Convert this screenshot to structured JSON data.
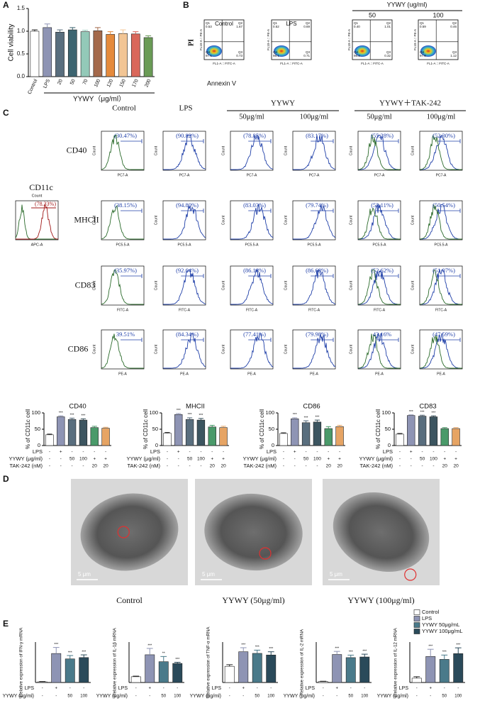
{
  "panel_labels": [
    "A",
    "B",
    "C",
    "D",
    "E"
  ],
  "chart_data": [
    {
      "type": "bar",
      "y_label": "Cell viability",
      "x_label": "YYWY（μg/ml）",
      "categories": [
        "Control",
        "LPS",
        "20",
        "50",
        "70",
        "100",
        "120",
        "150",
        "170",
        "200"
      ],
      "values": [
        1.0,
        1.08,
        0.98,
        1.03,
        0.99,
        1.01,
        0.93,
        0.95,
        0.94,
        0.86
      ],
      "errors": [
        0.03,
        0.08,
        0.05,
        0.05,
        0.03,
        0.07,
        0.06,
        0.08,
        0.05,
        0.04
      ],
      "colors": [
        "#ffffff",
        "#8e94b4",
        "#596e7e",
        "#3c6470",
        "#93c9b8",
        "#a4694b",
        "#e58a3c",
        "#f2c594",
        "#d9675a",
        "#6a9b56"
      ],
      "ylim": [
        0,
        1.5
      ],
      "yticks": [
        {
          "value": 0,
          "label": "0.0"
        },
        0.5,
        {
          "value": 1,
          "label": "1.0"
        },
        1.5
      ]
    },
    {
      "type": "bar",
      "title": "CD40",
      "y_label": "% of CD11c cell",
      "categories": [
        null,
        null,
        null,
        null,
        null,
        null
      ],
      "values": [
        33,
        88,
        80,
        78,
        55,
        53
      ],
      "errors": [
        2,
        3,
        4,
        4,
        4,
        3
      ],
      "colors": [
        "#ffffff",
        "#8e94b4",
        "#596e7e",
        "#3c5560",
        "#4a9a6a",
        "#e6a464"
      ],
      "significance": [
        null,
        "***",
        "***",
        "***",
        null,
        null
      ],
      "ylim": [
        0,
        100
      ],
      "yticks": [
        0,
        50,
        100
      ],
      "conditions": [
        {
          "name": "LPS",
          "values": [
            "-",
            "+",
            "-",
            "-",
            "-",
            "-"
          ]
        },
        {
          "name": "YYWY (μg/ml)",
          "values": [
            "-",
            "-",
            "50",
            "100",
            "+",
            "+"
          ]
        },
        {
          "name": "TAK-242 (nM)",
          "values": [
            "-",
            "-",
            "-",
            "-",
            "20",
            "20"
          ]
        }
      ]
    },
    {
      "type": "bar",
      "title": "MHCII",
      "y_label": "% of CD11c cell",
      "categories": [
        null,
        null,
        null,
        null,
        null,
        null
      ],
      "values": [
        38,
        95,
        80,
        78,
        57,
        55
      ],
      "errors": [
        2,
        3,
        5,
        5,
        5,
        4
      ],
      "colors": [
        "#ffffff",
        "#8e94b4",
        "#596e7e",
        "#3c5560",
        "#4a9a6a",
        "#e6a464"
      ],
      "significance": [
        null,
        "***",
        "***",
        "***",
        null,
        null
      ],
      "ylim": [
        0,
        100
      ],
      "yticks": [
        0,
        50,
        100
      ],
      "conditions": [
        {
          "name": "LPS",
          "values": [
            "-",
            "+",
            "-",
            "-",
            "-",
            "-"
          ]
        },
        {
          "name": "YYWY (μg/ml)",
          "values": [
            "-",
            "-",
            "50",
            "100",
            "+",
            "+"
          ]
        },
        {
          "name": "TAK-242 (nM)",
          "values": [
            "-",
            "-",
            "-",
            "-",
            "20",
            "20"
          ]
        }
      ]
    },
    {
      "type": "bar",
      "title": "CD86",
      "y_label": "% of CD11c cell",
      "categories": [
        null,
        null,
        null,
        null,
        null,
        null
      ],
      "values": [
        37,
        82,
        70,
        72,
        52,
        58
      ],
      "errors": [
        2,
        3,
        6,
        6,
        6,
        4
      ],
      "colors": [
        "#ffffff",
        "#8e94b4",
        "#596e7e",
        "#3c5560",
        "#4a9a6a",
        "#e6a464"
      ],
      "significance": [
        null,
        "***",
        "***",
        "***",
        null,
        null
      ],
      "ylim": [
        0,
        100
      ],
      "yticks": [
        0,
        50,
        100
      ],
      "conditions": [
        {
          "name": "LPS",
          "values": [
            "-",
            "+",
            "-",
            "-",
            "-",
            "-"
          ]
        },
        {
          "name": "YYWY (μg/ml)",
          "values": [
            "-",
            "-",
            "50",
            "100",
            "+",
            "+"
          ]
        },
        {
          "name": "TAK-242 (nM)",
          "values": [
            "-",
            "-",
            "-",
            "-",
            "20",
            "20"
          ]
        }
      ]
    },
    {
      "type": "bar",
      "title": "CD83",
      "y_label": "% of CD11c cell",
      "categories": [
        null,
        null,
        null,
        null,
        null,
        null
      ],
      "values": [
        35,
        92,
        90,
        88,
        52,
        52
      ],
      "errors": [
        2,
        2,
        3,
        3,
        3,
        3
      ],
      "colors": [
        "#ffffff",
        "#8e94b4",
        "#596e7e",
        "#3c5560",
        "#4a9a6a",
        "#e6a464"
      ],
      "significance": [
        null,
        "***",
        "***",
        "***",
        null,
        null
      ],
      "ylim": [
        0,
        100
      ],
      "yticks": [
        0,
        50,
        100
      ],
      "conditions": [
        {
          "name": "LPS",
          "values": [
            "-",
            "+",
            "-",
            "-",
            "-",
            "-"
          ]
        },
        {
          "name": "YYWY (μg/ml)",
          "values": [
            "-",
            "-",
            "50",
            "100",
            "+",
            "+"
          ]
        },
        {
          "name": "TAK-242 (nM)",
          "values": [
            "-",
            "-",
            "-",
            "-",
            "20",
            "20"
          ]
        }
      ]
    },
    {
      "type": "bar",
      "y_label": "Relative expression of IFN-γ mRNA",
      "categories": [
        null,
        null,
        null,
        null
      ],
      "values": [
        1,
        43,
        35,
        37
      ],
      "errors": [
        0.5,
        9,
        5,
        4
      ],
      "colors": [
        "#ffffff",
        "#8e94b4",
        "#4a7a8a",
        "#2a4a5a"
      ],
      "significance": [
        null,
        "***",
        "***",
        "***"
      ],
      "ylim": [
        0,
        60
      ],
      "conditions": [
        {
          "name": "LPS",
          "values": [
            "-",
            "+",
            "-",
            "-"
          ]
        },
        {
          "name": "YYWY (μg/ml)",
          "values": [
            "-",
            "-",
            "50",
            "100"
          ]
        }
      ]
    },
    {
      "type": "bar",
      "y_label": "Relative expression of IL-1β mRNA",
      "categories": [
        null,
        null,
        null,
        null
      ],
      "values": [
        1,
        4.8,
        3.6,
        3.3
      ],
      "errors": [
        0.1,
        1.1,
        0.9,
        0.2
      ],
      "colors": [
        "#ffffff",
        "#8e94b4",
        "#4a7a8a",
        "#2a4a5a"
      ],
      "significance": [
        null,
        "***",
        "**",
        "***"
      ],
      "ylim": [
        0,
        7
      ],
      "conditions": [
        {
          "name": "LPS",
          "values": [
            "-",
            "+",
            "-",
            "-"
          ]
        },
        {
          "name": "YYWY (μg/ml)",
          "values": [
            "-",
            "-",
            "50",
            "100"
          ]
        }
      ]
    },
    {
      "type": "bar",
      "y_label": "Relative expression of TNF-α mRNA",
      "categories": [
        null,
        null,
        null,
        null
      ],
      "values": [
        1,
        1.9,
        1.8,
        1.7
      ],
      "errors": [
        0.1,
        0.25,
        0.2,
        0.2
      ],
      "colors": [
        "#ffffff",
        "#8e94b4",
        "#4a7a8a",
        "#2a4a5a"
      ],
      "significance": [
        null,
        "***",
        "***",
        "***"
      ],
      "ylim": [
        0,
        2.5
      ],
      "conditions": [
        {
          "name": "LPS",
          "values": [
            "-",
            "+",
            "-",
            "-"
          ]
        },
        {
          "name": "YYWY (μg/ml)",
          "values": [
            "-",
            "-",
            "50",
            "100"
          ]
        }
      ]
    },
    {
      "type": "bar",
      "y_label": "Relative expression of IL-2 mRNA",
      "categories": [
        null,
        null,
        null,
        null
      ],
      "values": [
        3,
        90,
        80,
        82
      ],
      "errors": [
        1,
        10,
        8,
        9
      ],
      "colors": [
        "#ffffff",
        "#8e94b4",
        "#4a7a8a",
        "#2a4a5a"
      ],
      "significance": [
        null,
        "***",
        "***",
        "***"
      ],
      "ylim": [
        0,
        130
      ],
      "conditions": [
        {
          "name": "LPS",
          "values": [
            "-",
            "+",
            "-",
            "-"
          ]
        },
        {
          "name": "YYWY (μg/ml)",
          "values": [
            "-",
            "-",
            "50",
            "100"
          ]
        }
      ]
    },
    {
      "type": "bar",
      "y_label": "Relative expression of IL-12 mRNA",
      "categories": [
        null,
        null,
        null,
        null
      ],
      "values": [
        1.5,
        9,
        8,
        10
      ],
      "errors": [
        0.5,
        2.5,
        1.5,
        2
      ],
      "colors": [
        "#ffffff",
        "#8e94b4",
        "#4a7a8a",
        "#2a4a5a"
      ],
      "significance": [
        null,
        "***",
        "***",
        "***"
      ],
      "ylim": [
        0,
        14
      ],
      "legend": [
        "Control",
        "LPS",
        "YYWY 50μg/mL",
        "YYWY 100μg/mL"
      ],
      "conditions": [
        {
          "name": "LPS",
          "values": [
            "-",
            "+",
            "-",
            "-"
          ]
        },
        {
          "name": "YYWY (μg/ml)",
          "values": [
            "-",
            "-",
            "50",
            "100"
          ]
        }
      ]
    }
  ],
  "panel_b": {
    "y_label": "PI",
    "x_label": "Annexin V",
    "group": "YYWY (ug/ml)",
    "x_axis": "FL1-A :: FITC-A",
    "y_axis": "FL10-A :: PE-A",
    "quadrant_names": [
      "Q1",
      "Q2",
      "Q3",
      "Q4"
    ],
    "plots": [
      {
        "title": "Control",
        "q1": "0.53",
        "q2": "1.67",
        "q3": "0.73",
        "q4": "97.1"
      },
      {
        "title": "LPS",
        "q1": "0.52",
        "q2": "0.69",
        "q3": "0.71",
        "q4": "98.1"
      },
      {
        "title": "50",
        "q1": "0.40",
        "q2": "1.01",
        "q3": "0.32",
        "q4": "98.3"
      },
      {
        "title": "100",
        "q1": "0.59",
        "q2": "0.46",
        "q3": "1.12",
        "q4": "97.8"
      }
    ]
  },
  "panel_c": {
    "groups": [
      "YYWY",
      "YYWY＋TAK-242"
    ],
    "columns": [
      "Control",
      "LPS",
      "50μg/ml",
      "100μg/ml",
      "50μg/ml",
      "100μg/ml"
    ],
    "y_axis": "Count",
    "rows": [
      {
        "marker": "CD40",
        "axis": "PC7-A",
        "percents": [
          "(30.47%)",
          "(90.82%)",
          "(78.85%)",
          "(83.17%)",
          "(55.28%)",
          "(52.30%)"
        ]
      },
      {
        "marker": "MHCII",
        "axis": "PC5.5-A",
        "percents": [
          "(38.15%)",
          "(94.80%)",
          "(83.03%)",
          "(79.74%)",
          "(52.11%)",
          "(50.54%)"
        ]
      },
      {
        "marker": "CD83",
        "axis": "FITC-A",
        "percents": [
          "(35.97%)",
          "(92.64%)",
          "(86.18%)",
          "(86.68%)",
          "(52.62%)",
          "(51.07%)"
        ]
      },
      {
        "marker": "CD86",
        "axis": "PE-A",
        "percents": [
          "39.51%",
          "(84.34%)",
          "(77.41%)",
          "(79.98%)",
          "43.16%",
          "(47.59%)"
        ]
      }
    ],
    "inset": {
      "title": "CD11c",
      "percent": "(78.33%)",
      "axis": "APC-A"
    }
  },
  "panel_d": {
    "captions": [
      "Control",
      "YYWY (50μg/ml)",
      "YYWY (100μg/ml)"
    ],
    "scale": "5 μm"
  }
}
